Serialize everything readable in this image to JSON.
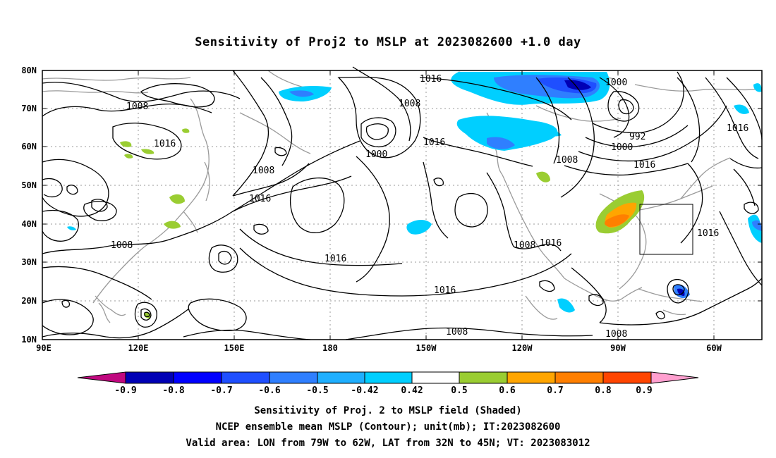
{
  "title": "Sensitivity of Proj2 to MSLP at 2023082600 +1.0 day",
  "axes": {
    "lat_ticks": [
      "80N",
      "70N",
      "60N",
      "50N",
      "40N",
      "30N",
      "20N",
      "10N"
    ],
    "lon_ticks": [
      "90E",
      "120E",
      "150E",
      "180",
      "150W",
      "120W",
      "90W",
      "60W"
    ]
  },
  "contour_labels": [
    {
      "id": "c1",
      "text": "1016"
    },
    {
      "id": "c2",
      "text": "1000"
    },
    {
      "id": "c3",
      "text": "1008"
    },
    {
      "id": "c4",
      "text": "1008"
    },
    {
      "id": "c5",
      "text": "992"
    },
    {
      "id": "c6",
      "text": "1016"
    },
    {
      "id": "c7",
      "text": "1016"
    },
    {
      "id": "c8",
      "text": "1000"
    },
    {
      "id": "c9",
      "text": "1016"
    },
    {
      "id": "c10",
      "text": "1000"
    },
    {
      "id": "c11",
      "text": "1016"
    },
    {
      "id": "c12",
      "text": "1008"
    },
    {
      "id": "c13",
      "text": "1008"
    },
    {
      "id": "c14",
      "text": "1016"
    },
    {
      "id": "c15",
      "text": "1016"
    },
    {
      "id": "c16",
      "text": "1008"
    },
    {
      "id": "c17",
      "text": "1016"
    },
    {
      "id": "c18",
      "text": "1016"
    },
    {
      "id": "c19",
      "text": "1008"
    },
    {
      "id": "c20",
      "text": "1008"
    },
    {
      "id": "c21",
      "text": "1008"
    },
    {
      "id": "c22",
      "text": "1016"
    },
    {
      "id": "c23",
      "text": "1016"
    }
  ],
  "colorbar": {
    "colors": [
      "#c0087f",
      "#0000b5",
      "#0000ff",
      "#1f4fff",
      "#2f7fff",
      "#1fafff",
      "#00cfff",
      "#ffffff",
      "#9acd32",
      "#ffa500",
      "#ff7f00",
      "#ff4500",
      "#ff2000",
      "#ff0000",
      "#ff9fcf"
    ],
    "labels": [
      "-0.9",
      "-0.8",
      "-0.7",
      "-0.6",
      "-0.5",
      "-0.42",
      "0.42",
      "0.5",
      "0.6",
      "0.7",
      "0.8",
      "0.9"
    ]
  },
  "captions": {
    "line1": "Sensitivity of Proj. 2 to MSLP field (Shaded)",
    "line2": "NCEP ensemble mean MSLP (Contour); unit(mb); IT:2023082600",
    "line3": "Valid area: LON from 79W to 62W, LAT from 32N to 45N; VT: 2023083012"
  }
}
